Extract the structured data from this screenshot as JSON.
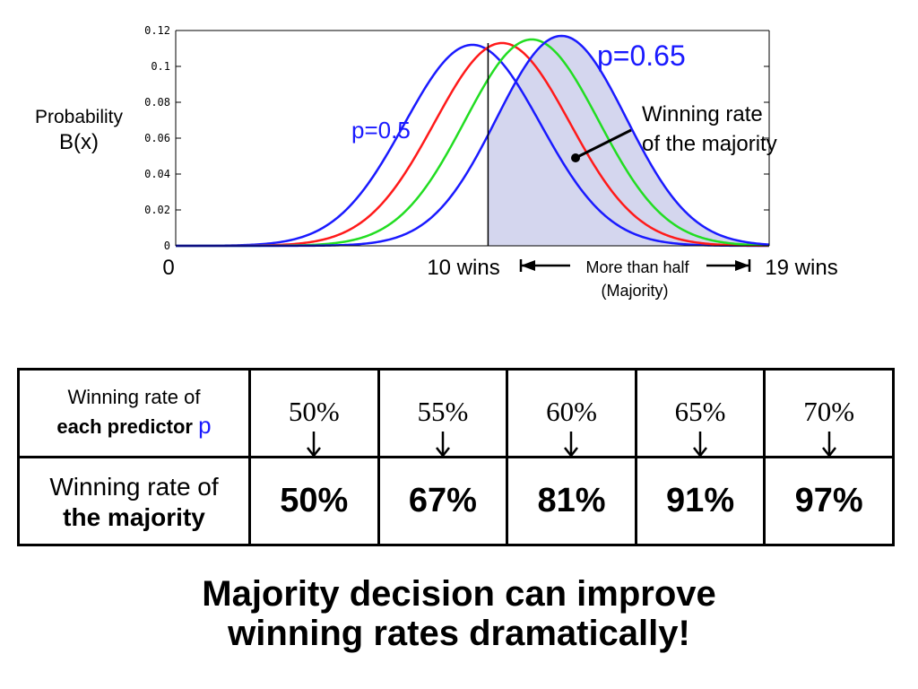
{
  "chart_data": {
    "type": "line",
    "y_tick_labels": [
      "0.12",
      "0.1",
      "0.08",
      "0.06",
      "0.04",
      "0.02",
      "0"
    ],
    "y_ticks": [
      0.12,
      0.1,
      0.08,
      0.06,
      0.04,
      0.02,
      0
    ],
    "ylim": [
      0,
      0.12
    ],
    "xlim": [
      0,
      19
    ],
    "ylabel_line1": "Probability",
    "ylabel_line2": "B(x)",
    "x_label_zero": "0",
    "x_label_ten": "10 wins",
    "x_label_nineteen": "19 wins",
    "majority_label_line1": "More than half",
    "majority_label_line2": "(Majority)",
    "annotation_p05": "p=0.5",
    "annotation_p065": "p=0.65",
    "annotation_majority_line1": "Winning rate",
    "annotation_majority_line2": "of the majority",
    "majority_threshold_x": 10,
    "grid": false,
    "series": [
      {
        "p": 0.5,
        "color": "#1a1aff",
        "peak_x": 9.5,
        "peak_y": 0.112,
        "sigma": 2.18
      },
      {
        "p": 0.55,
        "color": "#ff1a1a",
        "peak_x": 10.45,
        "peak_y": 0.113,
        "sigma": 2.17
      },
      {
        "p": 0.6,
        "color": "#22dd22",
        "peak_x": 11.4,
        "peak_y": 0.115,
        "sigma": 2.14
      },
      {
        "p": 0.65,
        "color": "#1a1aff",
        "peak_x": 12.35,
        "peak_y": 0.117,
        "sigma": 2.08,
        "shade_from_x": 10,
        "shade_color": "#d4d6ee"
      }
    ]
  },
  "table": {
    "row1_label_line1": "Winning rate of",
    "row1_label_line2": "each predictor",
    "row1_label_p": "p",
    "row2_label_line1": "Winning rate of",
    "row2_label_line2": "the majority",
    "columns": [
      {
        "predictor": "50%",
        "majority": "50%"
      },
      {
        "predictor": "55%",
        "majority": "67%"
      },
      {
        "predictor": "60%",
        "majority": "81%"
      },
      {
        "predictor": "65%",
        "majority": "91%"
      },
      {
        "predictor": "70%",
        "majority": "97%"
      }
    ]
  },
  "headline": {
    "line1": "Majority decision can improve",
    "line2": "winning rates dramatically!"
  }
}
